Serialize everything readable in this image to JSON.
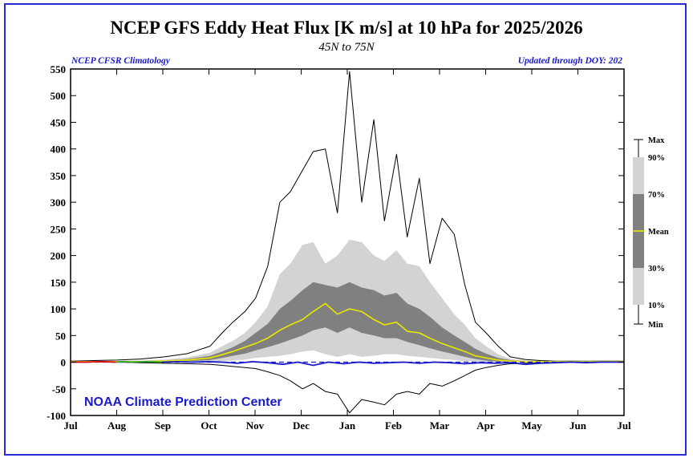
{
  "header": {
    "title": "NCEP GFS Eddy Heat Flux [K m/s] at 10 hPa for 2025/2026",
    "subtitle": "45N to 75N",
    "left_note": "NCEP CFSR Climatology",
    "right_note": "Updated through DOY: 202"
  },
  "watermark": "NOAA Climate Prediction Center",
  "colors": {
    "frame": "#2b2bd6",
    "band_10_90": "#d3d3d3",
    "band_30_70": "#808080",
    "mean": "#e8e800",
    "max_min": "#000000",
    "current_year_segments": [
      "#e00000",
      "#1fa01f",
      "#1a1acc"
    ],
    "zero_line": "#1a1acc",
    "note_text": "#1a1acc"
  },
  "legend": {
    "labels": [
      "Max",
      "90%",
      "70%",
      "Mean",
      "30%",
      "10%",
      "Min"
    ]
  },
  "chart_data": {
    "type": "area",
    "xlabel": "",
    "ylabel": "",
    "x_ticks": [
      "Jul",
      "Aug",
      "Sep",
      "Oct",
      "Nov",
      "Dec",
      "Jan",
      "Feb",
      "Mar",
      "Apr",
      "May",
      "Jun",
      "Jul"
    ],
    "x_range_days": [
      0,
      365
    ],
    "ylim": [
      -100,
      550
    ],
    "y_ticks": [
      -100,
      -50,
      0,
      50,
      100,
      150,
      200,
      250,
      300,
      350,
      400,
      450,
      500,
      550
    ],
    "zero_line_style": "dashed",
    "days": [
      0,
      15,
      31,
      46,
      62,
      77,
      92,
      100,
      107,
      115,
      122,
      130,
      138,
      145,
      153,
      160,
      168,
      176,
      184,
      192,
      200,
      207,
      215,
      222,
      230,
      237,
      245,
      253,
      260,
      267,
      274,
      282,
      290,
      300,
      310,
      320,
      335,
      350,
      365
    ],
    "series": [
      {
        "name": "Max",
        "values": [
          2,
          3,
          4,
          6,
          10,
          16,
          30,
          55,
          75,
          95,
          120,
          180,
          300,
          320,
          360,
          395,
          400,
          280,
          545,
          300,
          455,
          265,
          390,
          235,
          345,
          185,
          270,
          240,
          145,
          75,
          55,
          30,
          10,
          5,
          3,
          2,
          2,
          2,
          2
        ]
      },
      {
        "name": "90%",
        "values": [
          1,
          1,
          2,
          3,
          5,
          9,
          18,
          30,
          40,
          55,
          75,
          105,
          165,
          185,
          220,
          225,
          185,
          200,
          230,
          225,
          200,
          190,
          210,
          185,
          180,
          150,
          120,
          90,
          70,
          45,
          30,
          15,
          6,
          3,
          2,
          1,
          1,
          1,
          1
        ]
      },
      {
        "name": "70%",
        "values": [
          1,
          1,
          1,
          2,
          3,
          6,
          12,
          20,
          28,
          40,
          55,
          72,
          100,
          115,
          135,
          150,
          145,
          140,
          150,
          140,
          135,
          125,
          130,
          110,
          100,
          85,
          65,
          50,
          38,
          25,
          16,
          8,
          4,
          2,
          1,
          1,
          1,
          1,
          1
        ]
      },
      {
        "name": "Mean",
        "values": [
          1,
          1,
          1,
          1,
          2,
          4,
          8,
          14,
          20,
          28,
          35,
          45,
          60,
          70,
          80,
          95,
          110,
          90,
          100,
          95,
          80,
          70,
          75,
          58,
          55,
          45,
          35,
          27,
          20,
          12,
          8,
          4,
          2,
          1,
          1,
          1,
          1,
          1,
          1
        ]
      },
      {
        "name": "30%",
        "values": [
          0,
          0,
          1,
          1,
          1,
          2,
          4,
          8,
          12,
          16,
          22,
          28,
          35,
          42,
          50,
          60,
          65,
          55,
          65,
          55,
          50,
          45,
          45,
          38,
          32,
          26,
          20,
          15,
          10,
          6,
          3,
          1,
          1,
          0,
          0,
          0,
          0,
          0,
          0
        ]
      },
      {
        "name": "10%",
        "values": [
          0,
          0,
          0,
          0,
          0,
          0,
          1,
          2,
          3,
          5,
          8,
          10,
          12,
          15,
          20,
          22,
          15,
          10,
          15,
          10,
          12,
          15,
          15,
          12,
          10,
          8,
          6,
          4,
          2,
          1,
          0,
          0,
          0,
          0,
          0,
          0,
          0,
          0,
          0
        ]
      },
      {
        "name": "Min",
        "values": [
          0,
          0,
          0,
          -1,
          -2,
          -3,
          -4,
          -6,
          -8,
          -10,
          -12,
          -18,
          -25,
          -35,
          -50,
          -40,
          -55,
          -60,
          -95,
          -70,
          -75,
          -80,
          -60,
          -55,
          -60,
          -40,
          -45,
          -35,
          -25,
          -15,
          -10,
          -6,
          -3,
          -2,
          -1,
          -1,
          0,
          0,
          0
        ]
      }
    ],
    "current_year": {
      "days": [
        0,
        10,
        20,
        30,
        35,
        40,
        50,
        60,
        70,
        80,
        90,
        100,
        110,
        120,
        130,
        140,
        150,
        160,
        170,
        180,
        190,
        200,
        210,
        220,
        230,
        240,
        250,
        260,
        270,
        280,
        290,
        300,
        310,
        320,
        330,
        340,
        350,
        360,
        365
      ],
      "values": [
        0,
        0,
        1,
        0,
        1,
        0,
        1,
        0,
        1,
        0,
        1,
        0,
        -2,
        1,
        -1,
        -4,
        0,
        -6,
        0,
        -3,
        0,
        -2,
        -1,
        0,
        -2,
        0,
        -1,
        -3,
        -1,
        -2,
        -1,
        -4,
        -2,
        -1,
        0,
        -1,
        0,
        0,
        0
      ]
    }
  }
}
